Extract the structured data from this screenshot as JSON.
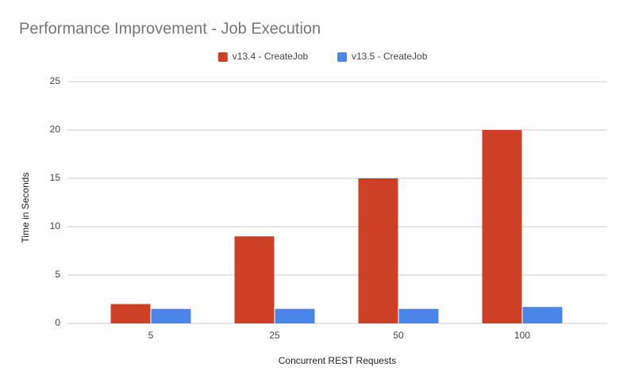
{
  "chart_data": {
    "type": "bar",
    "title": "Performance Improvement - Job Execution",
    "x_label": "Concurrent REST Requests",
    "y_label": "Time in Seconds",
    "categories": [
      "5",
      "25",
      "50",
      "100"
    ],
    "series": [
      {
        "name": "v13.4 - CreateJob",
        "color": "#cc4125",
        "values": [
          2,
          9,
          15,
          20
        ]
      },
      {
        "name": "v13.5 - CreateJob",
        "color": "#4a86e8",
        "values": [
          1.5,
          1.5,
          1.5,
          1.7
        ]
      }
    ],
    "ylim": [
      0,
      25
    ],
    "yticks": [
      0,
      5,
      10,
      15,
      20,
      25
    ],
    "grid": true,
    "legend": "top"
  }
}
